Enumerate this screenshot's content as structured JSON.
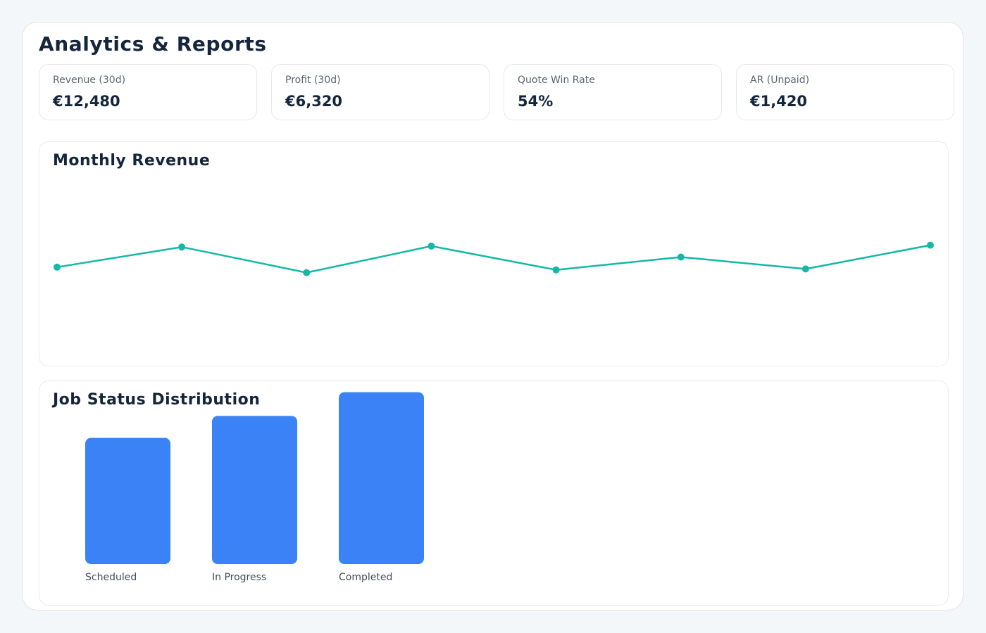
{
  "page": {
    "title": "Analytics & Reports"
  },
  "kpis": [
    {
      "label": "Revenue (30d)",
      "value": "€12,480"
    },
    {
      "label": "Profit (30d)",
      "value": "€6,320"
    },
    {
      "label": "Quote Win Rate",
      "value": "54%"
    },
    {
      "label": "AR (Unpaid)",
      "value": "€1,420"
    }
  ],
  "colors": {
    "line": "#14b8a6",
    "bar": "#3b82f6"
  },
  "chart_data": [
    {
      "type": "line",
      "title": "Monthly Revenue",
      "x": [
        1,
        2,
        3,
        4,
        5,
        6,
        7,
        8
      ],
      "values": [
        0.47,
        0.58,
        0.44,
        0.585,
        0.455,
        0.525,
        0.46,
        0.59
      ],
      "ylim": [
        0,
        1
      ],
      "grid": false,
      "axes_visible": false
    },
    {
      "type": "bar",
      "title": "Job Status Distribution",
      "categories": [
        "Scheduled",
        "In Progress",
        "Completed"
      ],
      "values": [
        0.69,
        0.81,
        0.94
      ],
      "ylim": [
        0,
        1
      ],
      "grid": false
    }
  ]
}
